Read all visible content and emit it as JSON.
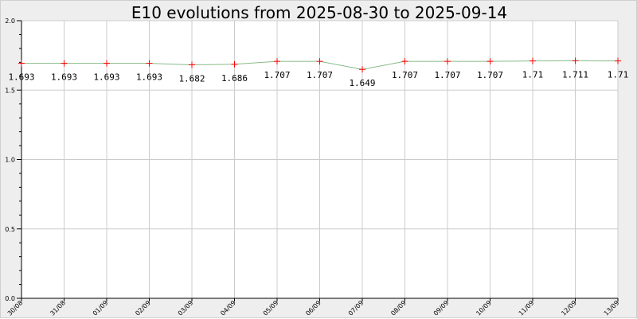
{
  "chart_data": {
    "type": "line",
    "title": "E10 evolutions from 2025-08-30 to 2025-09-14",
    "xlabel": "",
    "ylabel": "",
    "ylim": [
      0.0,
      2.0
    ],
    "yticks": [
      "0.0",
      "0.5",
      "1.0",
      "1.5",
      "2.0"
    ],
    "grid": true,
    "categories": [
      "30/08",
      "31/08",
      "01/09",
      "02/09",
      "03/09",
      "04/09",
      "05/09",
      "06/09",
      "07/09",
      "08/09",
      "09/09",
      "10/09",
      "11/09",
      "12/09",
      "13/09"
    ],
    "values": [
      1.693,
      1.693,
      1.693,
      1.693,
      1.682,
      1.686,
      1.707,
      1.707,
      1.649,
      1.707,
      1.707,
      1.707,
      1.71,
      1.711,
      1.71
    ],
    "value_labels": [
      "1.693",
      "1.693",
      "1.693",
      "1.693",
      "1.682",
      "1.686",
      "1.707",
      "1.707",
      "1.649",
      "1.707",
      "1.707",
      "1.707",
      "1.71",
      "1.711",
      "1.71"
    ],
    "line_color": "#88bb88",
    "marker_color": "#ff0000",
    "grid_color": "#cccccc",
    "background_color": "#eeeeee",
    "plot_background_color": "#ffffff"
  }
}
